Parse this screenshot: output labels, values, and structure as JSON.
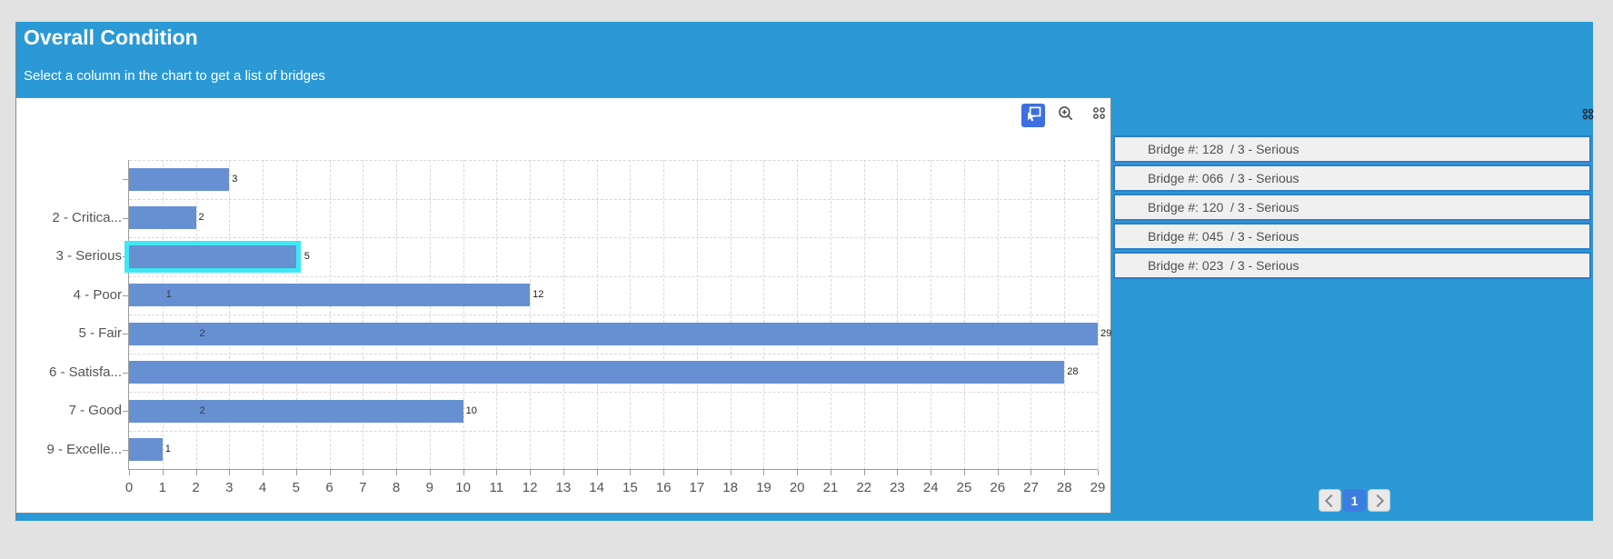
{
  "widget": {
    "title": "Overall Condition",
    "subtitle": "Select a column in the chart to get a list of bridges",
    "header_bg": "#2A99D6",
    "accent_blue": "#3D6FE0"
  },
  "toolbar": {
    "select_tool_active": true,
    "icons": [
      "marquee-select-icon",
      "zoom-in-icon",
      "grid-dots-icon"
    ]
  },
  "chart_data": {
    "type": "bar",
    "orientation": "horizontal",
    "title": "",
    "xlabel": "",
    "ylabel": "",
    "categories": [
      "",
      "2 - Critica...",
      "3 - Serious",
      "4 - Poor",
      "5 - Fair",
      "6 - Satisfa...",
      "7 - Good",
      "9 - Excelle..."
    ],
    "values": [
      3,
      2,
      5,
      12,
      29,
      28,
      10,
      1
    ],
    "secondary_labels": [
      null,
      null,
      null,
      1,
      2,
      null,
      2,
      null
    ],
    "selected_index": 2,
    "selected_category": "3 - Serious",
    "xlim": [
      0,
      29
    ],
    "x_ticks": [
      0,
      1,
      2,
      3,
      4,
      5,
      6,
      7,
      8,
      9,
      10,
      11,
      12,
      13,
      14,
      15,
      16,
      17,
      18,
      19,
      20,
      21,
      22,
      23,
      24,
      25,
      26,
      27,
      28,
      29
    ],
    "grid": true,
    "bar_color": "#6690D2",
    "selected_outline_color": "#3EE8F4",
    "legend": null
  },
  "bridge_list": {
    "items": [
      "Bridge #: 128  / 3 - Serious",
      "Bridge #: 066  / 3 - Serious",
      "Bridge #: 120  / 3 - Serious",
      "Bridge #: 045  / 3 - Serious",
      "Bridge #: 023  / 3 - Serious"
    ]
  },
  "pagination": {
    "current_page": "1"
  }
}
